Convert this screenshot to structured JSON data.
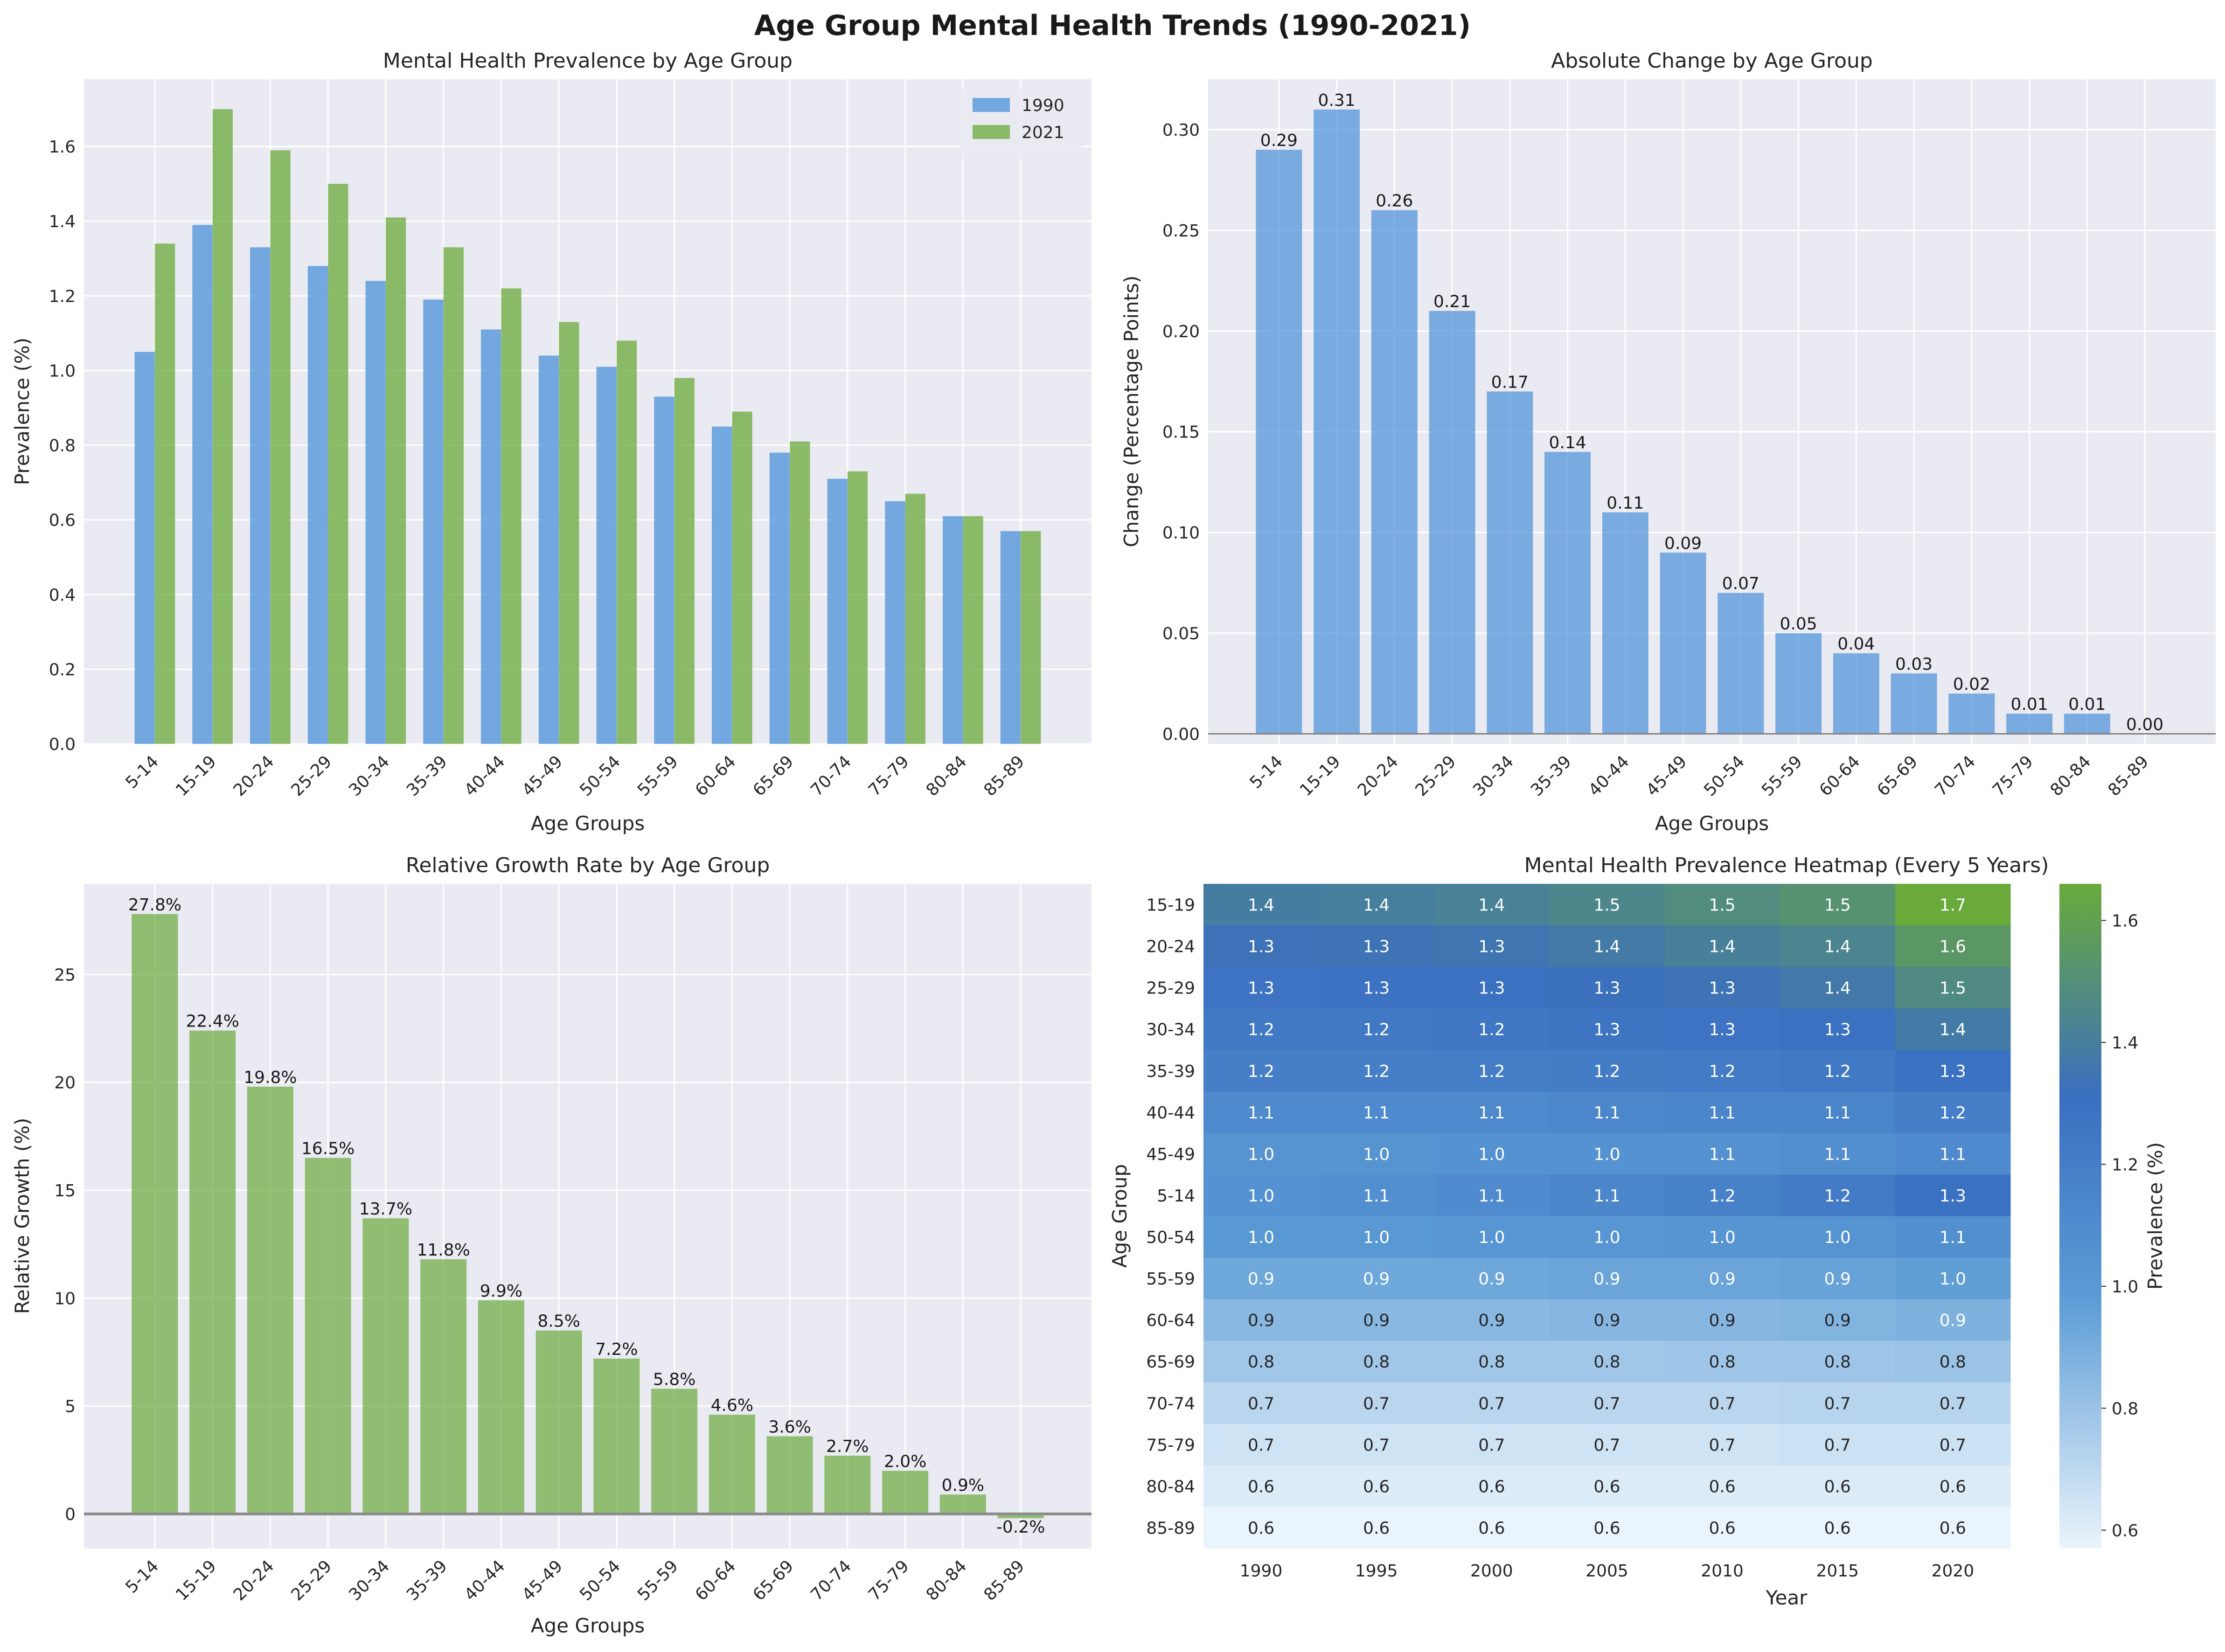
{
  "figure_title": "Age Group Mental Health Trends (1990-2021)",
  "colors": {
    "blue": "#4a90d9",
    "green": "#6aaa3a",
    "panel_bg": "#eaeaf2",
    "grid": "#ffffff"
  },
  "chart_data": [
    {
      "type": "bar",
      "title": "Mental Health Prevalence by Age Group",
      "xlabel": "Age Groups",
      "ylabel": "Prevalence (%)",
      "categories": [
        "5-14",
        "15-19",
        "20-24",
        "25-29",
        "30-34",
        "35-39",
        "40-44",
        "45-49",
        "50-54",
        "55-59",
        "60-64",
        "65-69",
        "70-74",
        "75-79",
        "80-84",
        "85-89"
      ],
      "series": [
        {
          "name": "1990",
          "color": "#4a90d9",
          "values": [
            1.05,
            1.39,
            1.33,
            1.28,
            1.24,
            1.19,
            1.11,
            1.04,
            1.01,
            0.93,
            0.85,
            0.78,
            0.71,
            0.65,
            0.61,
            0.57
          ]
        },
        {
          "name": "2021",
          "color": "#6aaa3a",
          "values": [
            1.34,
            1.7,
            1.59,
            1.5,
            1.41,
            1.33,
            1.22,
            1.13,
            1.08,
            0.98,
            0.89,
            0.81,
            0.73,
            0.67,
            0.61,
            0.57
          ]
        }
      ],
      "ylim": [
        0,
        1.78
      ],
      "yticks": [
        "0.0",
        "0.2",
        "0.4",
        "0.6",
        "0.8",
        "1.0",
        "1.2",
        "1.4",
        "1.6"
      ],
      "legend": "top-right",
      "grid": true
    },
    {
      "type": "bar",
      "title": "Absolute Change by Age Group",
      "xlabel": "Age Groups",
      "ylabel": "Change (Percentage Points)",
      "categories": [
        "5-14",
        "15-19",
        "20-24",
        "25-29",
        "30-34",
        "35-39",
        "40-44",
        "45-49",
        "50-54",
        "55-59",
        "60-64",
        "65-69",
        "70-74",
        "75-79",
        "80-84",
        "85-89"
      ],
      "values": [
        0.29,
        0.31,
        0.26,
        0.21,
        0.17,
        0.14,
        0.11,
        0.09,
        0.07,
        0.05,
        0.04,
        0.03,
        0.02,
        0.01,
        0.01,
        0.0
      ],
      "data_labels": [
        "0.29",
        "0.31",
        "0.26",
        "0.21",
        "0.17",
        "0.14",
        "0.11",
        "0.09",
        "0.07",
        "0.05",
        "0.04",
        "0.03",
        "0.02",
        "0.01",
        "0.01",
        "0.00"
      ],
      "ylim": [
        -0.005,
        0.325
      ],
      "yticks": [
        "0.00",
        "0.05",
        "0.10",
        "0.15",
        "0.20",
        "0.25",
        "0.30"
      ],
      "grid": true
    },
    {
      "type": "bar",
      "title": "Relative Growth Rate by Age Group",
      "xlabel": "Age Groups",
      "ylabel": "Relative Growth (%)",
      "categories": [
        "5-14",
        "15-19",
        "20-24",
        "25-29",
        "30-34",
        "35-39",
        "40-44",
        "45-49",
        "50-54",
        "55-59",
        "60-64",
        "65-69",
        "70-74",
        "75-79",
        "80-84",
        "85-89"
      ],
      "values": [
        27.8,
        22.4,
        19.8,
        16.5,
        13.7,
        11.8,
        9.9,
        8.5,
        7.2,
        5.8,
        4.6,
        3.6,
        2.7,
        2.0,
        0.9,
        -0.2
      ],
      "data_labels": [
        "27.8%",
        "22.4%",
        "19.8%",
        "16.5%",
        "13.7%",
        "11.8%",
        "9.9%",
        "8.5%",
        "7.2%",
        "5.8%",
        "4.6%",
        "3.6%",
        "2.7%",
        "2.0%",
        "0.9%",
        "-0.2%"
      ],
      "ylim": [
        -1.6,
        29.2
      ],
      "yticks": [
        "0",
        "5",
        "10",
        "15",
        "20",
        "25"
      ],
      "grid": true
    },
    {
      "type": "heatmap",
      "title": "Mental Health Prevalence Heatmap (Every 5 Years)",
      "xlabel": "Year",
      "ylabel": "Age Group",
      "x": [
        "1990",
        "1995",
        "2000",
        "2005",
        "2010",
        "2015",
        "2020"
      ],
      "y": [
        "15-19",
        "20-24",
        "25-29",
        "30-34",
        "35-39",
        "40-44",
        "45-49",
        "5-14",
        "50-54",
        "55-59",
        "60-64",
        "65-69",
        "70-74",
        "75-79",
        "80-84",
        "85-89"
      ],
      "values": [
        [
          1.39,
          1.4,
          1.42,
          1.45,
          1.48,
          1.52,
          1.66
        ],
        [
          1.33,
          1.34,
          1.35,
          1.38,
          1.41,
          1.44,
          1.55
        ],
        [
          1.28,
          1.29,
          1.3,
          1.32,
          1.34,
          1.37,
          1.47
        ],
        [
          1.24,
          1.24,
          1.25,
          1.27,
          1.28,
          1.3,
          1.38
        ],
        [
          1.19,
          1.19,
          1.2,
          1.21,
          1.22,
          1.24,
          1.3
        ],
        [
          1.11,
          1.11,
          1.12,
          1.13,
          1.14,
          1.15,
          1.2
        ],
        [
          1.04,
          1.04,
          1.05,
          1.05,
          1.06,
          1.07,
          1.11
        ],
        [
          1.05,
          1.07,
          1.1,
          1.14,
          1.18,
          1.22,
          1.3
        ],
        [
          1.01,
          1.01,
          1.02,
          1.02,
          1.03,
          1.04,
          1.07
        ],
        [
          0.93,
          0.93,
          0.93,
          0.94,
          0.94,
          0.95,
          0.97
        ],
        [
          0.85,
          0.85,
          0.85,
          0.86,
          0.86,
          0.87,
          0.88
        ],
        [
          0.78,
          0.78,
          0.78,
          0.78,
          0.79,
          0.79,
          0.8
        ],
        [
          0.71,
          0.71,
          0.71,
          0.71,
          0.71,
          0.72,
          0.72
        ],
        [
          0.65,
          0.65,
          0.65,
          0.65,
          0.65,
          0.66,
          0.66
        ],
        [
          0.61,
          0.61,
          0.61,
          0.61,
          0.61,
          0.61,
          0.61
        ],
        [
          0.57,
          0.57,
          0.57,
          0.57,
          0.57,
          0.57,
          0.57
        ]
      ],
      "cell_labels": [
        [
          "1.4",
          "1.4",
          "1.4",
          "1.5",
          "1.5",
          "1.5",
          "1.7"
        ],
        [
          "1.3",
          "1.3",
          "1.3",
          "1.4",
          "1.4",
          "1.4",
          "1.6"
        ],
        [
          "1.3",
          "1.3",
          "1.3",
          "1.3",
          "1.3",
          "1.4",
          "1.5"
        ],
        [
          "1.2",
          "1.2",
          "1.2",
          "1.3",
          "1.3",
          "1.3",
          "1.4"
        ],
        [
          "1.2",
          "1.2",
          "1.2",
          "1.2",
          "1.2",
          "1.2",
          "1.3"
        ],
        [
          "1.1",
          "1.1",
          "1.1",
          "1.1",
          "1.1",
          "1.1",
          "1.2"
        ],
        [
          "1.0",
          "1.0",
          "1.0",
          "1.0",
          "1.1",
          "1.1",
          "1.1"
        ],
        [
          "1.0",
          "1.1",
          "1.1",
          "1.1",
          "1.2",
          "1.2",
          "1.3"
        ],
        [
          "1.0",
          "1.0",
          "1.0",
          "1.0",
          "1.0",
          "1.0",
          "1.1"
        ],
        [
          "0.9",
          "0.9",
          "0.9",
          "0.9",
          "0.9",
          "0.9",
          "1.0"
        ],
        [
          "0.9",
          "0.9",
          "0.9",
          "0.9",
          "0.9",
          "0.9",
          "0.9"
        ],
        [
          "0.8",
          "0.8",
          "0.8",
          "0.8",
          "0.8",
          "0.8",
          "0.8"
        ],
        [
          "0.7",
          "0.7",
          "0.7",
          "0.7",
          "0.7",
          "0.7",
          "0.7"
        ],
        [
          "0.7",
          "0.7",
          "0.7",
          "0.7",
          "0.7",
          "0.7",
          "0.7"
        ],
        [
          "0.6",
          "0.6",
          "0.6",
          "0.6",
          "0.6",
          "0.6",
          "0.6"
        ],
        [
          "0.6",
          "0.6",
          "0.6",
          "0.6",
          "0.6",
          "0.6",
          "0.6"
        ]
      ],
      "colorbar": {
        "label": "Prevalence (%)",
        "range": [
          0.57,
          1.66
        ],
        "ticks": [
          "0.6",
          "0.8",
          "1.0",
          "1.2",
          "1.4",
          "1.6"
        ],
        "stops": [
          "#eaf4fc",
          "#5b9bd5",
          "#3a6fc0",
          "#6aaa3a"
        ]
      }
    }
  ]
}
